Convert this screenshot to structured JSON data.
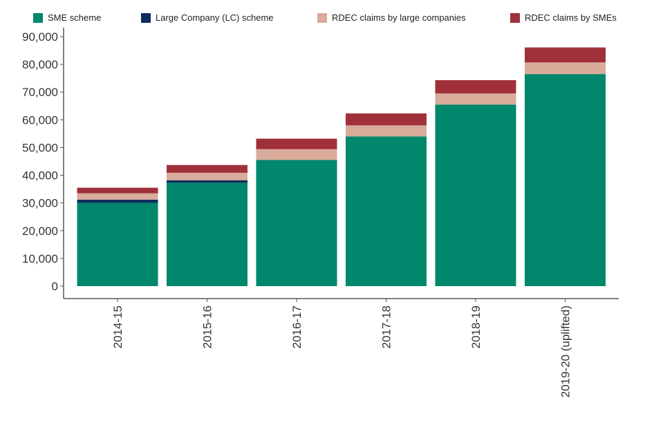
{
  "chart_data": {
    "type": "bar",
    "stacked": true,
    "categories": [
      "2014-15",
      "2015-16",
      "2016-17",
      "2017-18",
      "2018-19",
      "2019-20 (uplifted)"
    ],
    "series": [
      {
        "name": "SME scheme",
        "color": "#00876c",
        "values": [
          30000,
          37300,
          45500,
          54000,
          65500,
          76500
        ]
      },
      {
        "name": "Large Company (LC) scheme",
        "color": "#0d2d5e",
        "values": [
          1200,
          900,
          0,
          0,
          0,
          0
        ]
      },
      {
        "name": "RDEC claims by large companies",
        "color": "#d9ab9b",
        "values": [
          2300,
          2700,
          3900,
          4000,
          4000,
          4200
        ]
      },
      {
        "name": "RDEC claims by SMEs",
        "color": "#a0313a",
        "values": [
          2000,
          2800,
          3800,
          4300,
          4800,
          5400
        ]
      }
    ],
    "yticks": [
      "0",
      "10,000",
      "20,000",
      "30,000",
      "40,000",
      "50,000",
      "60,000",
      "70,000",
      "80,000",
      "90,000"
    ],
    "ylim": [
      0,
      90000
    ],
    "grid": false,
    "legend_position": "top"
  }
}
